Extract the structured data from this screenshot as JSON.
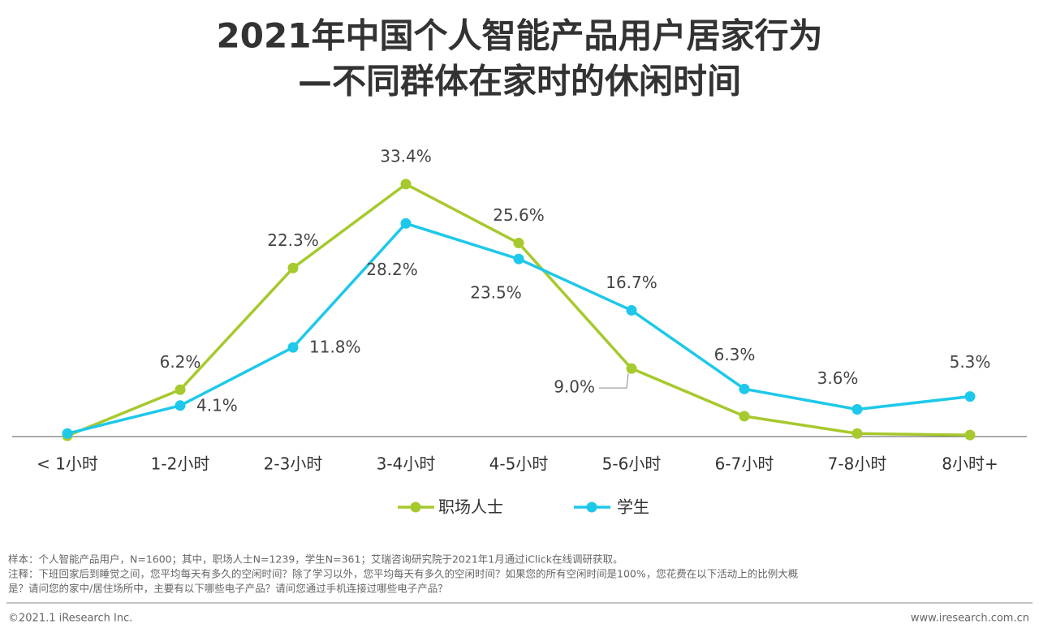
{
  "chart_data": {
    "type": "line",
    "title": "2021年中国个人智能产品用户居家行为",
    "subtitle": "—不同群体在家时的休闲时间",
    "categories": [
      "< 1小时",
      "1-2小时",
      "2-3小时",
      "3-4小时",
      "4-5小时",
      "5-6小时",
      "6-7小时",
      "7-8小时",
      "8小时+"
    ],
    "series": [
      {
        "name": "职场人士",
        "color": "#a6c92d",
        "values": [
          0.1,
          6.2,
          22.3,
          33.4,
          25.6,
          9.0,
          2.7,
          0.4,
          0.2
        ],
        "value_labels": [
          null,
          "6.2%",
          "22.3%",
          "33.4%",
          "25.6%",
          "9.0%",
          null,
          null,
          null
        ]
      },
      {
        "name": "学生",
        "color": "#1ec8ea",
        "values": [
          0.4,
          4.1,
          11.8,
          28.2,
          23.5,
          16.7,
          6.3,
          3.6,
          5.3
        ],
        "value_labels": [
          null,
          "4.1%",
          "11.8%",
          "28.2%",
          "23.5%",
          "16.7%",
          "6.3%",
          "3.6%",
          "5.3%"
        ]
      }
    ],
    "ylim": [
      0,
      35
    ],
    "grid": false,
    "legend": "bottom"
  },
  "footer": {
    "notes": [
      "样本：个人智能产品用户，N=1600；其中，职场人士N=1239，学生N=361；艾瑞咨询研究院于2021年1月通过iClick在线调研获取。",
      "注释：下班回家后到睡觉之间，您平均每天有多久的空闲时间？除了学习以外，您平均每天有多久的空闲时间？如果您的所有空闲时间是100%，您花费在以下活动上的比例大概",
      "是？请问您的家中/居住场所中，主要有以下哪些电子产品？请问您通过手机连接过哪些电子产品？"
    ],
    "copyright": "©2021.1 iResearch Inc.",
    "website": "www.iresearch.com.cn"
  }
}
